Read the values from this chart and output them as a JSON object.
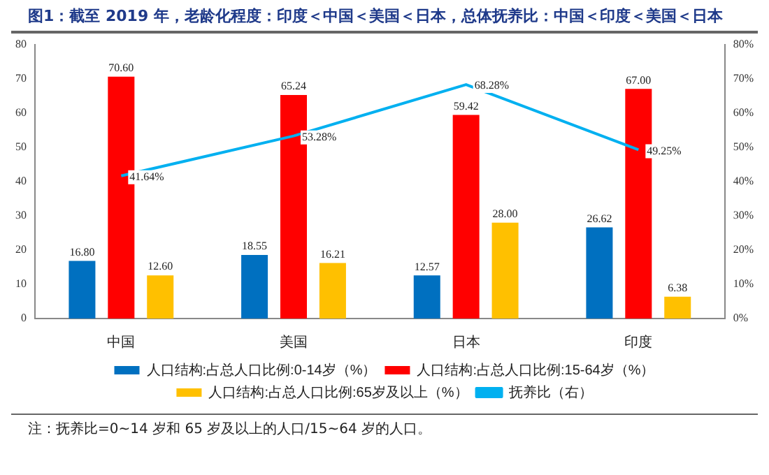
{
  "chart_data": {
    "type": "bar",
    "title": "图1：截至 2019 年，老龄化程度：印度＜中国＜美国＜日本，总体抚养比：中国＜印度＜美国＜日本",
    "categories": [
      "中国",
      "美国",
      "日本",
      "印度"
    ],
    "series": [
      {
        "name": "人口结构:占总人口比例:0-14岁（%）",
        "color": "#0070c0",
        "values": [
          16.8,
          18.55,
          12.57,
          26.62
        ],
        "value_labels": [
          "16.80",
          "18.55",
          "12.57",
          "26.62"
        ]
      },
      {
        "name": "人口结构:占总人口比例:15-64岁（%）",
        "color": "#ff0000",
        "values": [
          70.6,
          65.24,
          59.42,
          67.0
        ],
        "value_labels": [
          "70.60",
          "65.24",
          "59.42",
          "67.00"
        ]
      },
      {
        "name": "人口结构:占总人口比例:65岁及以上（%）",
        "color": "#ffc000",
        "values": [
          12.6,
          16.21,
          28.0,
          6.38
        ],
        "value_labels": [
          "12.60",
          "16.21",
          "28.00",
          "6.38"
        ]
      },
      {
        "name": "抚养比（右）",
        "type": "line",
        "axis": "y2",
        "color": "#00b0f0",
        "values": [
          41.64,
          53.28,
          68.28,
          49.25
        ],
        "value_labels": [
          "41.64%",
          "53.28%",
          "68.28%",
          "49.25%"
        ]
      }
    ],
    "ylim": [
      0,
      80
    ],
    "yticks": [
      0,
      10,
      20,
      30,
      40,
      50,
      60,
      70,
      80
    ],
    "y2lim": [
      0,
      80
    ],
    "y2ticks": [
      {
        "value": 0,
        "label": "0%"
      },
      {
        "value": 10,
        "label": "10%"
      },
      {
        "value": 20,
        "label": "20%"
      },
      {
        "value": 30,
        "label": "30%"
      },
      {
        "value": 40,
        "label": "40%"
      },
      {
        "value": 50,
        "label": "50%"
      },
      {
        "value": 60,
        "label": "60%"
      },
      {
        "value": 70,
        "label": "70%"
      },
      {
        "value": 80,
        "label": "80%"
      }
    ],
    "grid": false,
    "legend": "bottom",
    "marker": "none",
    "annotations": [
      "注：抚养比=0~14 岁和 65 岁及以上的人口/15~64 岁的人口。"
    ]
  }
}
